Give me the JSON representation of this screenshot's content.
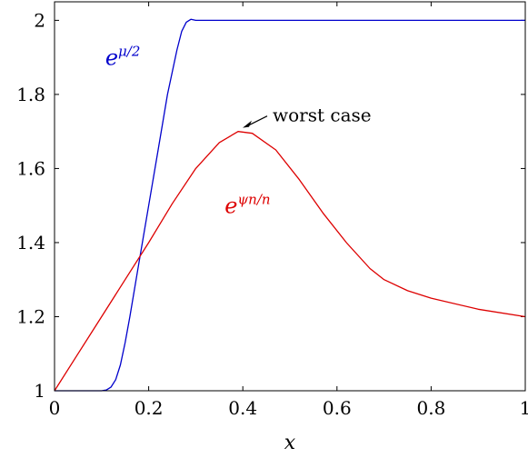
{
  "chart_data": {
    "type": "line",
    "xlabel": "x",
    "ylabel": "",
    "xlim": [
      0,
      1
    ],
    "ylim": [
      1,
      2.05
    ],
    "x_ticks": [
      0,
      0.2,
      0.4,
      0.6,
      0.8,
      1
    ],
    "x_tick_labels": [
      "0",
      "0.2",
      "0.4",
      "0.6",
      "0.8",
      "1"
    ],
    "y_ticks": [
      1,
      1.2,
      1.4,
      1.6,
      1.8,
      2
    ],
    "y_tick_labels": [
      "1",
      "1.2",
      "1.4",
      "1.6",
      "1.8",
      "2"
    ],
    "grid": false,
    "series": [
      {
        "label_base": "e",
        "label_exp": "μ/2",
        "color": "#0000cc",
        "points": [
          [
            0,
            1
          ],
          [
            0.1,
            1
          ],
          [
            0.11,
            1.002
          ],
          [
            0.12,
            1.01
          ],
          [
            0.13,
            1.03
          ],
          [
            0.14,
            1.07
          ],
          [
            0.15,
            1.13
          ],
          [
            0.16,
            1.2
          ],
          [
            0.18,
            1.35
          ],
          [
            0.2,
            1.5
          ],
          [
            0.22,
            1.65
          ],
          [
            0.24,
            1.8
          ],
          [
            0.26,
            1.92
          ],
          [
            0.27,
            1.97
          ],
          [
            0.28,
            1.995
          ],
          [
            0.29,
            2.003
          ],
          [
            0.3,
            2.0
          ],
          [
            1,
            2.0
          ]
        ]
      },
      {
        "label_base": "e",
        "label_exp": "ψn/n",
        "color": "#dd0000",
        "points": [
          [
            0,
            1
          ],
          [
            0.05,
            1.1
          ],
          [
            0.1,
            1.2
          ],
          [
            0.15,
            1.3
          ],
          [
            0.2,
            1.4
          ],
          [
            0.25,
            1.505
          ],
          [
            0.3,
            1.6
          ],
          [
            0.35,
            1.67
          ],
          [
            0.39,
            1.7
          ],
          [
            0.42,
            1.695
          ],
          [
            0.47,
            1.65
          ],
          [
            0.52,
            1.57
          ],
          [
            0.57,
            1.48
          ],
          [
            0.62,
            1.4
          ],
          [
            0.67,
            1.33
          ],
          [
            0.7,
            1.3
          ],
          [
            0.75,
            1.27
          ],
          [
            0.8,
            1.25
          ],
          [
            0.9,
            1.22
          ],
          [
            1,
            1.2
          ]
        ]
      }
    ],
    "annotations": [
      {
        "text": "worst case",
        "x": 0.39,
        "y": 1.7
      }
    ]
  }
}
